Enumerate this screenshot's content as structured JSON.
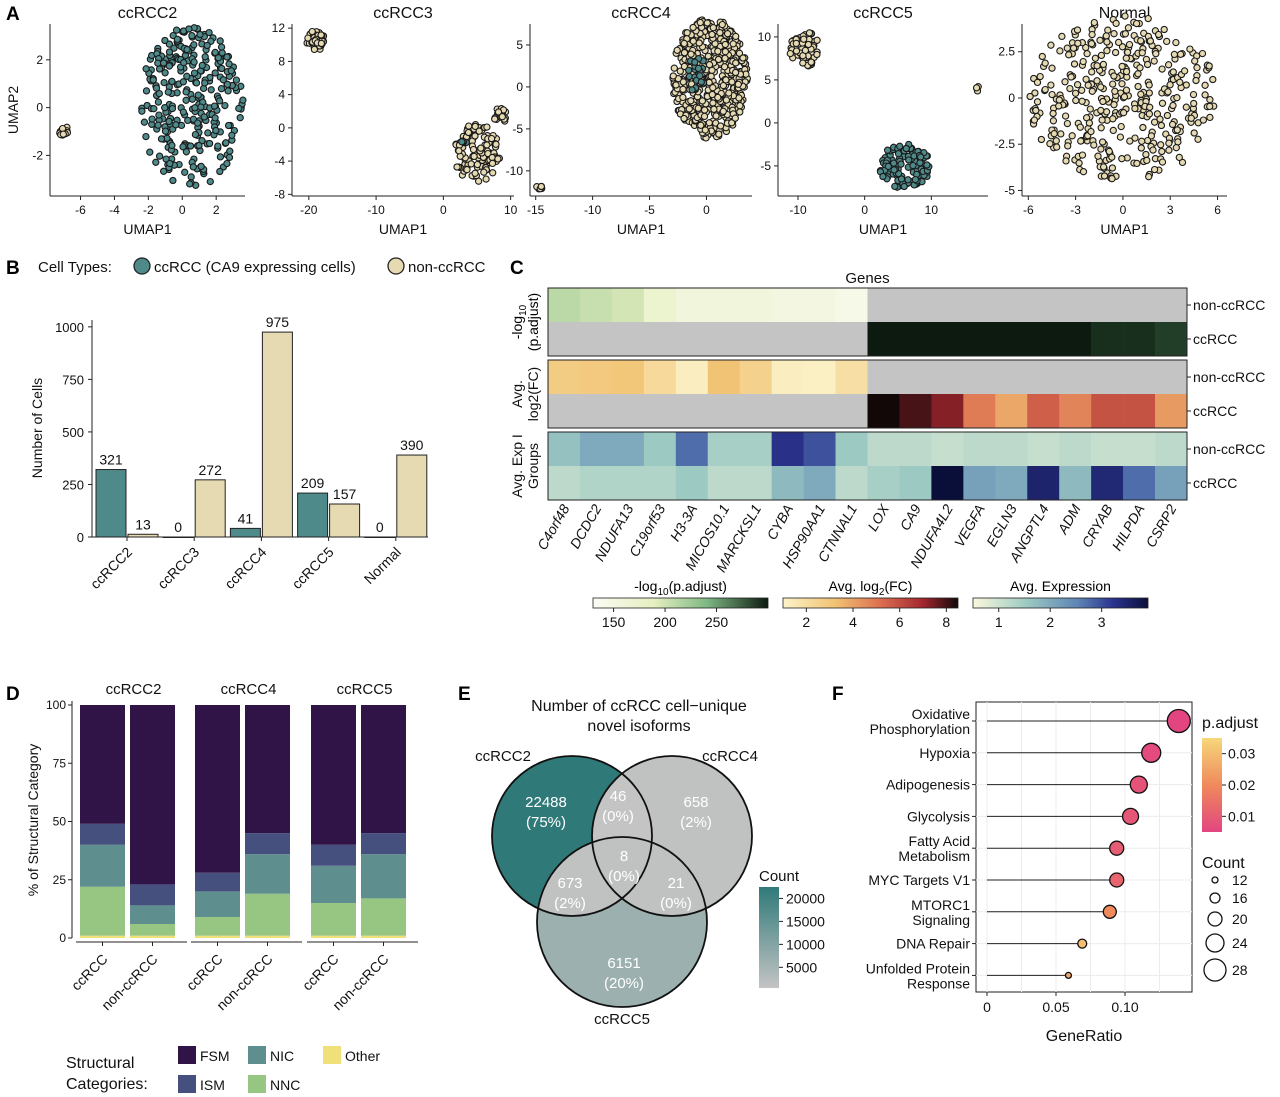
{
  "panels": {
    "A": "A",
    "B": "B",
    "C": "C",
    "D": "D",
    "E": "E",
    "F": "F"
  },
  "colors": {
    "ccrcc": "#4f8a8b",
    "non_ccrcc": "#e6dab2",
    "fsm": "#301447",
    "ism": "#45507e",
    "nic": "#5e8e8e",
    "nnc": "#97c683",
    "other": "#f0e07a"
  },
  "chart_data": [
    {
      "id": "A",
      "type": "scatter",
      "subplots": [
        {
          "title": "ccRCC2",
          "xlabel": "UMAP1",
          "ylabel": "UMAP2",
          "xticks": [
            "-6",
            "-4",
            "-2",
            "0",
            "2"
          ],
          "yticks": [
            "2",
            "0",
            "-2"
          ],
          "clusters": [
            {
              "group": "ccRCC",
              "shape": "blob",
              "cx": 0.5,
              "cy": 0,
              "rx": 3.1,
              "ry": 3.4,
              "n": 300
            },
            {
              "group": "non-ccRCC",
              "shape": "blob",
              "cx": -7.0,
              "cy": -1.0,
              "rx": 0.25,
              "ry": 0.3,
              "n": 14
            }
          ]
        },
        {
          "title": "ccRCC3",
          "xlabel": "UMAP1",
          "ylabel": "",
          "xticks": [
            "-20",
            "-10",
            "0",
            "10"
          ],
          "yticks": [
            "12",
            "8",
            "4",
            "0",
            "-4",
            "-8"
          ],
          "clusters": [
            {
              "group": "non-ccRCC",
              "shape": "blob",
              "cx": -19,
              "cy": 10.5,
              "rx": 1.3,
              "ry": 1.3,
              "n": 40
            },
            {
              "group": "non-ccRCC",
              "shape": "blob",
              "cx": 5,
              "cy": -3,
              "rx": 3.5,
              "ry": 3.5,
              "n": 120
            },
            {
              "group": "non-ccRCC",
              "shape": "blob",
              "cx": 8.5,
              "cy": 1.5,
              "rx": 1,
              "ry": 1,
              "n": 20
            },
            {
              "group": "ccRCC",
              "shape": "dots",
              "cx": 3,
              "cy": -2,
              "rx": 0.5,
              "ry": 0.5,
              "n": 6
            }
          ]
        },
        {
          "title": "ccRCC4",
          "xlabel": "UMAP1",
          "ylabel": "",
          "xticks": [
            "-15",
            "-10",
            "-5",
            "0"
          ],
          "yticks": [
            "5",
            "0",
            "-5",
            "-10"
          ],
          "clusters": [
            {
              "group": "non-ccRCC",
              "shape": "blob",
              "cx": 0.3,
              "cy": 1,
              "rx": 3.3,
              "ry": 7.2,
              "n": 500
            },
            {
              "group": "ccRCC",
              "shape": "dots",
              "cx": -0.8,
              "cy": 1.5,
              "rx": 0.8,
              "ry": 2.5,
              "n": 20
            },
            {
              "group": "non-ccRCC",
              "shape": "blob",
              "cx": -14.6,
              "cy": -12,
              "rx": 0.35,
              "ry": 0.35,
              "n": 6
            }
          ]
        },
        {
          "title": "ccRCC5",
          "xlabel": "UMAP1",
          "ylabel": "",
          "xticks": [
            "-10",
            "0",
            "10"
          ],
          "yticks": [
            "10",
            "5",
            "0",
            "-5"
          ],
          "clusters": [
            {
              "group": "non-ccRCC",
              "shape": "blob",
              "cx": -9,
              "cy": 8.5,
              "rx": 2.2,
              "ry": 2.2,
              "n": 60
            },
            {
              "group": "non-ccRCC",
              "shape": "blob",
              "cx": 17,
              "cy": 4,
              "rx": 0.35,
              "ry": 0.35,
              "n": 4
            },
            {
              "group": "ccRCC",
              "shape": "blob",
              "cx": 6,
              "cy": -5,
              "rx": 3.8,
              "ry": 2.6,
              "n": 120
            }
          ]
        },
        {
          "title": "Normal",
          "xlabel": "UMAP1",
          "ylabel": "",
          "xticks": [
            "-6",
            "-3",
            "0",
            "3",
            "6"
          ],
          "yticks": [
            "2.5",
            "0",
            "-2.5",
            "-5"
          ],
          "clusters": [
            {
              "group": "non-ccRCC",
              "shape": "dots",
              "cx": 0,
              "cy": 0,
              "rx": 6,
              "ry": 4.5,
              "n": 380
            }
          ]
        }
      ]
    },
    {
      "id": "B",
      "type": "bar",
      "legend_title": "Cell Types:",
      "series": [
        {
          "name": "ccRCC (CA9 expressing cells)",
          "values": [
            321,
            0,
            41,
            209,
            0
          ]
        },
        {
          "name": "non-ccRCC",
          "values": [
            13,
            272,
            975,
            157,
            390
          ]
        }
      ],
      "categories": [
        "ccRCC2",
        "ccRCC3",
        "ccRCC4",
        "ccRCC5",
        "Normal"
      ],
      "ylabel": "Number of Cells",
      "yticks": [
        "0",
        "250",
        "500",
        "750",
        "1000"
      ],
      "ylim": [
        0,
        1000
      ]
    },
    {
      "id": "C",
      "type": "heatmap",
      "title": "Genes",
      "genes": [
        "C4orf48",
        "DCDC2",
        "NDUFA13",
        "C19orf53",
        "H3-3A",
        "MICOS10.1",
        "MARCKSL1",
        "CYBA",
        "HSP90AA1",
        "CTNNAL1",
        "LOX",
        "CA9",
        "NDUFA4L2",
        "VEGFA",
        "EGLN3",
        "ANGPTL4",
        "ADM",
        "CRYAB",
        "HILPDA",
        "CSRP2"
      ],
      "row_labels": [
        "non-ccRCC",
        "ccRCC"
      ],
      "blocks": [
        {
          "label": [
            "-log",
            "10",
            "(p.adjust)"
          ],
          "rows": [
            [
              190,
              185,
              180,
              160,
              150,
              150,
              150,
              145,
              145,
              140,
              null,
              null,
              null,
              null,
              null,
              null,
              null,
              null,
              null,
              null
            ],
            [
              null,
              null,
              null,
              null,
              null,
              null,
              null,
              null,
              null,
              null,
              300,
              300,
              300,
              300,
              300,
              300,
              300,
              280,
              280,
              265
            ]
          ]
        },
        {
          "label": [
            "Avg.",
            "log2(FC)"
          ],
          "rows": [
            [
              2.5,
              2.6,
              2.7,
              2.0,
              1.2,
              2.8,
              2.3,
              1.2,
              1.1,
              1.8,
              null,
              null,
              null,
              null,
              null,
              null,
              null,
              null,
              null,
              null
            ],
            [
              null,
              null,
              null,
              null,
              null,
              null,
              null,
              null,
              null,
              null,
              8.5,
              7.8,
              7.0,
              4.5,
              3.5,
              5.2,
              4.3,
              5.5,
              5.5,
              3.8
            ]
          ]
        },
        {
          "label": [
            "Avg. Exp I",
            "Groups"
          ],
          "rows": [
            [
              1.5,
              1.8,
              1.8,
              1.4,
              2.5,
              1.3,
              1.3,
              3.2,
              2.8,
              1.4,
              1.1,
              1.1,
              1.0,
              1.1,
              1.1,
              1.0,
              1.1,
              1.0,
              1.0,
              1.1
            ],
            [
              1.1,
              1.2,
              1.2,
              1.2,
              1.4,
              1.1,
              1.1,
              1.6,
              1.8,
              1.1,
              1.3,
              1.4,
              4.0,
              1.9,
              1.8,
              3.5,
              1.6,
              3.4,
              2.5,
              1.9
            ]
          ]
        }
      ],
      "legends": [
        {
          "title": "-log",
          "sub": "10",
          "title2": "(p.adjust)",
          "ticks": [
            "150",
            "200",
            "250"
          ],
          "range": [
            130,
            300
          ]
        },
        {
          "title": "Avg. log",
          "sub": "2",
          "title2": "(FC)",
          "ticks": [
            "2",
            "4",
            "6",
            "8"
          ],
          "range": [
            1,
            8.5
          ]
        },
        {
          "title": "Avg. Expression",
          "sub": "",
          "title2": "",
          "ticks": [
            "1",
            "2",
            "3"
          ],
          "range": [
            0.5,
            3.9
          ]
        }
      ]
    },
    {
      "id": "D",
      "type": "bar",
      "ylabel": "% of Structural Category",
      "yticks": [
        "0",
        "25",
        "50",
        "75",
        "100"
      ],
      "ylim": [
        0,
        100
      ],
      "legend_title": [
        "Structural",
        "Categories:"
      ],
      "facets": [
        "ccRCC2",
        "ccRCC4",
        "ccRCC5"
      ],
      "categories": [
        "ccRCC",
        "non-ccRCC"
      ],
      "series": [
        {
          "name": "FSM",
          "values": [
            [
              51,
              77
            ],
            [
              72,
              55
            ],
            [
              60,
              55
            ]
          ]
        },
        {
          "name": "ISM",
          "values": [
            [
              9,
              9
            ],
            [
              8,
              9
            ],
            [
              9,
              9
            ]
          ]
        },
        {
          "name": "NIC",
          "values": [
            [
              18,
              8
            ],
            [
              11,
              17
            ],
            [
              16,
              19
            ]
          ]
        },
        {
          "name": "NNC",
          "values": [
            [
              21,
              5
            ],
            [
              8,
              18
            ],
            [
              14,
              16
            ]
          ]
        },
        {
          "name": "Other",
          "values": [
            [
              1,
              1
            ],
            [
              1,
              1
            ],
            [
              1,
              1
            ]
          ]
        }
      ]
    },
    {
      "id": "E",
      "type": "venn",
      "title": [
        "Number of ccRCC cell−unique",
        "novel isoforms"
      ],
      "sets": [
        "ccRCC2",
        "ccRCC4",
        "ccRCC5"
      ],
      "regions": [
        {
          "sets": [
            "ccRCC2"
          ],
          "count": "22488",
          "pct": "(75%)",
          "value": 22488
        },
        {
          "sets": [
            "ccRCC4"
          ],
          "count": "658",
          "pct": "(2%)",
          "value": 658
        },
        {
          "sets": [
            "ccRCC5"
          ],
          "count": "6151",
          "pct": "(20%)",
          "value": 6151
        },
        {
          "sets": [
            "ccRCC2",
            "ccRCC4"
          ],
          "count": "46",
          "pct": "(0%)",
          "value": 46
        },
        {
          "sets": [
            "ccRCC2",
            "ccRCC5"
          ],
          "count": "673",
          "pct": "(2%)",
          "value": 673
        },
        {
          "sets": [
            "ccRCC4",
            "ccRCC5"
          ],
          "count": "21",
          "pct": "(0%)",
          "value": 21
        },
        {
          "sets": [
            "ccRCC2",
            "ccRCC4",
            "ccRCC5"
          ],
          "count": "8",
          "pct": "(0%)",
          "value": 8
        }
      ],
      "legend_title": "Count",
      "legend_ticks": [
        "20000",
        "15000",
        "10000",
        "5000"
      ]
    },
    {
      "id": "F",
      "type": "scatter",
      "xlabel": "GeneRatio",
      "xticks": [
        "0",
        "0.05",
        "0.10"
      ],
      "xlim": [
        0,
        0.14
      ],
      "pathways": [
        {
          "name": [
            "Oxidative",
            "Phosphorylation"
          ],
          "ratio": 0.139,
          "padj": 0.005,
          "count": 29
        },
        {
          "name": [
            "Hypoxia"
          ],
          "ratio": 0.119,
          "padj": 0.006,
          "count": 25
        },
        {
          "name": [
            "Adipogenesis"
          ],
          "ratio": 0.11,
          "padj": 0.008,
          "count": 23
        },
        {
          "name": [
            "Glycolysis"
          ],
          "ratio": 0.104,
          "padj": 0.009,
          "count": 22
        },
        {
          "name": [
            "Fatty Acid",
            "Metabolism"
          ],
          "ratio": 0.094,
          "padj": 0.01,
          "count": 20
        },
        {
          "name": [
            "MYC Targets V1"
          ],
          "ratio": 0.094,
          "padj": 0.012,
          "count": 20
        },
        {
          "name": [
            "MTORC1",
            "Signaling"
          ],
          "ratio": 0.089,
          "padj": 0.02,
          "count": 19
        },
        {
          "name": [
            "DNA Repair"
          ],
          "ratio": 0.069,
          "padj": 0.03,
          "count": 15
        },
        {
          "name": [
            "Unfolded Protein",
            "Response"
          ],
          "ratio": 0.059,
          "padj": 0.025,
          "count": 12
        }
      ],
      "color_legend_title": "p.adjust",
      "color_ticks": [
        "0.03",
        "0.02",
        "0.01"
      ],
      "size_legend_title": "Count",
      "size_ticks": [
        "12",
        "16",
        "20",
        "24",
        "28"
      ]
    }
  ]
}
